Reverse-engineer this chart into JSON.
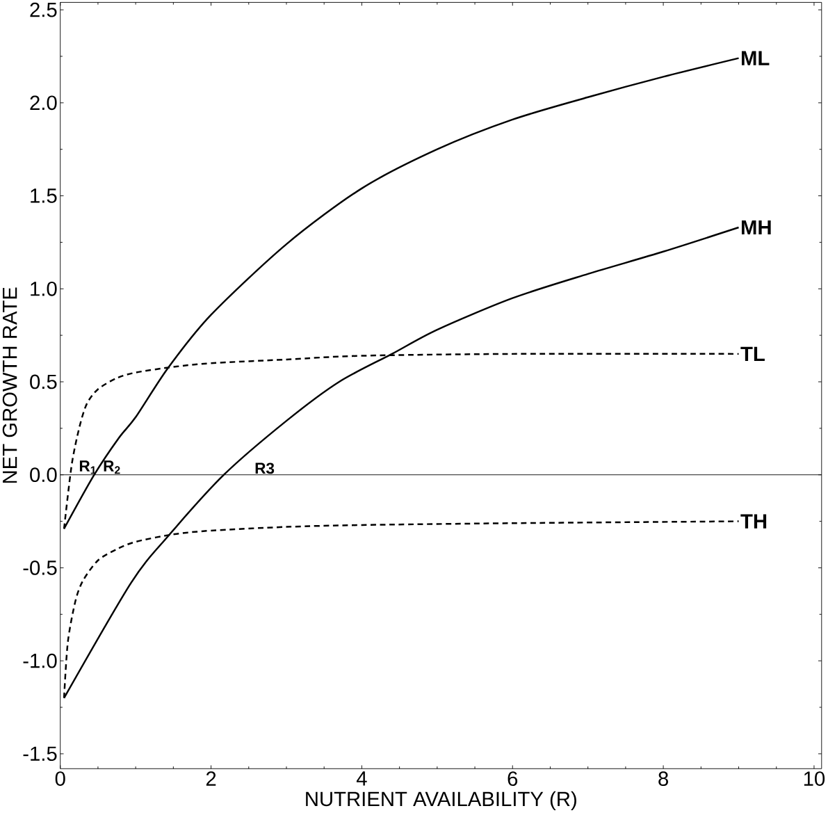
{
  "chart_data": {
    "type": "line",
    "xlabel": "NUTRIENT AVAILABILITY (R)",
    "ylabel": "NET GROWTH RATE",
    "xlim": [
      0,
      10.1
    ],
    "ylim": [
      -1.58,
      2.54
    ],
    "xticks": [
      0,
      2,
      4,
      6,
      8,
      10
    ],
    "yticks": [
      {
        "value": -1.5,
        "label": "-1.5"
      },
      {
        "value": -1.0,
        "label": "-1.0"
      },
      {
        "value": -0.5,
        "label": "-0.5"
      },
      {
        "value": 0,
        "label": "0.0"
      },
      {
        "value": 0.5,
        "label": "0.5"
      },
      {
        "value": 1.0,
        "label": "1.0"
      },
      {
        "value": 1.5,
        "label": "1.5"
      },
      {
        "value": 2.0,
        "label": "2.0"
      },
      {
        "value": 2.5,
        "label": "2.5"
      }
    ],
    "grid": false,
    "marker": "none",
    "series": [
      {
        "name": "ML",
        "color": "#000000",
        "line_style": "solid",
        "x": [
          0.05,
          0.45,
          0.78,
          1,
          1.43,
          2,
          3,
          4,
          5,
          6,
          7,
          8,
          9
        ],
        "values": [
          -0.29,
          0,
          0.2,
          0.31,
          0.575,
          0.86,
          1.24,
          1.54,
          1.75,
          1.91,
          2.03,
          2.14,
          2.24
        ]
      },
      {
        "name": "MH",
        "color": "#000000",
        "line_style": "solid",
        "x": [
          0.05,
          0.94,
          1.43,
          2.17,
          3,
          3.7,
          4.4,
          5,
          6,
          7,
          8,
          9
        ],
        "values": [
          -1.2,
          -0.58,
          -0.33,
          0,
          0.29,
          0.5,
          0.65,
          0.78,
          0.95,
          1.08,
          1.2,
          1.33
        ]
      },
      {
        "name": "TL",
        "color": "#000000",
        "line_style": "dashed",
        "x": [
          0.05,
          0.15,
          0.25,
          0.35,
          0.5,
          0.75,
          1,
          1.5,
          2,
          3,
          4,
          6,
          9
        ],
        "values": [
          -0.29,
          0.05,
          0.25,
          0.38,
          0.46,
          0.52,
          0.55,
          0.58,
          0.6,
          0.62,
          0.64,
          0.65,
          0.65
        ]
      },
      {
        "name": "TH",
        "color": "#000000",
        "line_style": "dashed",
        "x": [
          0.05,
          0.1,
          0.2,
          0.3,
          0.5,
          0.75,
          1,
          1.5,
          2,
          3,
          4,
          6,
          9
        ],
        "values": [
          -1.2,
          -0.9,
          -0.68,
          -0.57,
          -0.46,
          -0.4,
          -0.36,
          -0.32,
          -0.3,
          -0.28,
          -0.27,
          -0.26,
          -0.25
        ]
      }
    ],
    "ref_lines": [
      {
        "axis": "y",
        "value": 0,
        "color": "#000000",
        "line_style": "solid"
      }
    ],
    "annotations": [
      {
        "text": "R$_{1}$",
        "x": 0.13,
        "y": 0
      },
      {
        "text": "R$_{2}$",
        "x": 0.45,
        "y": 0
      },
      {
        "text": "R3",
        "x": 2.17,
        "y": 0
      }
    ]
  }
}
